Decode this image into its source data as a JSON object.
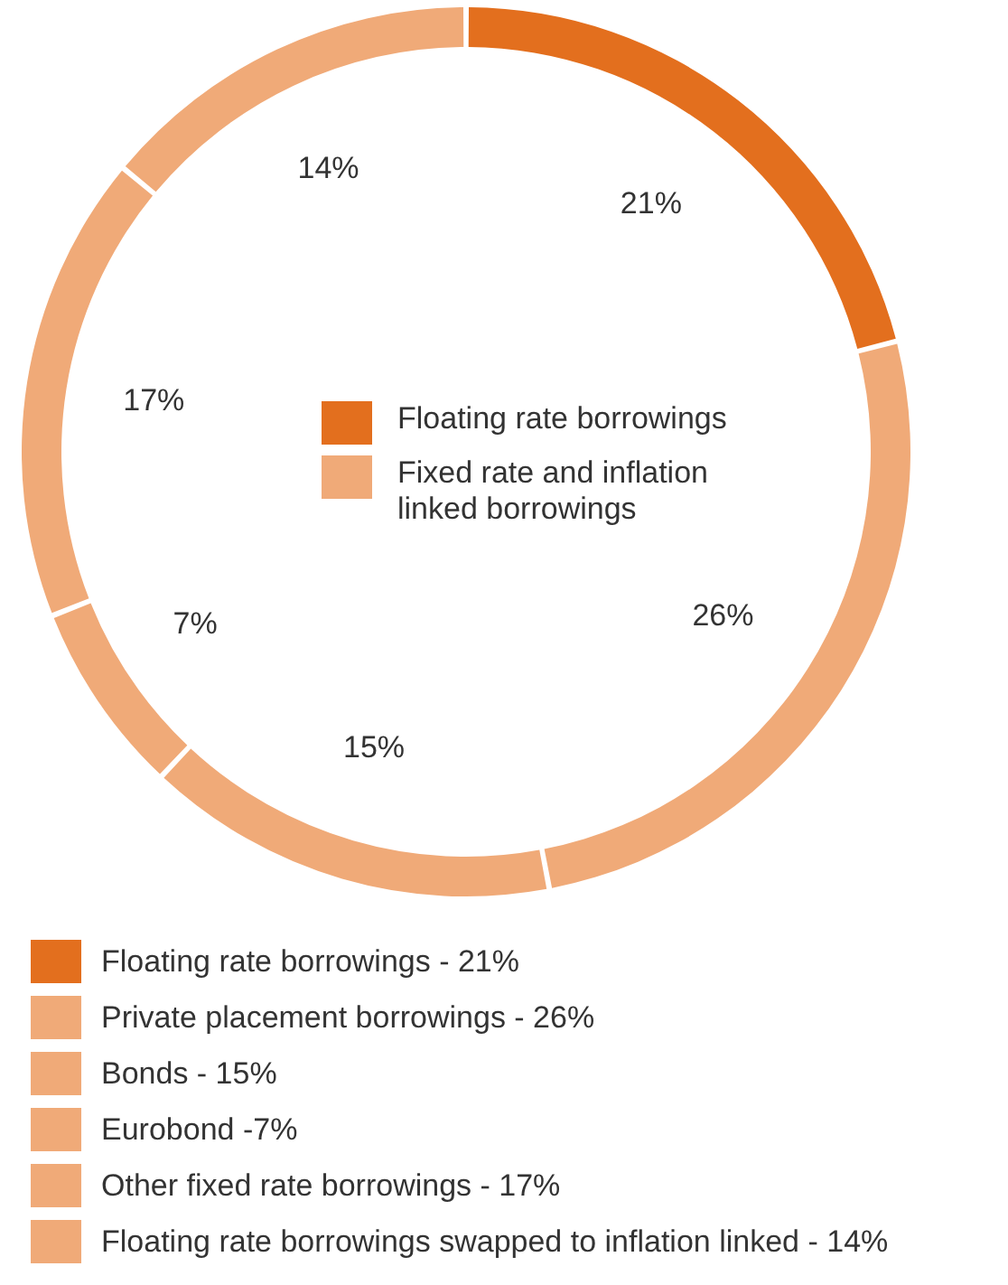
{
  "chart_data": {
    "type": "donut",
    "categories": [
      "Floating rate borrowings - 21%",
      "Private placement borrowings - 26%",
      "Bonds - 15%",
      "Eurobond -7%",
      "Other fixed rate borrowings - 17%",
      "Floating rate borrowings swapped to inflation linked - 14%"
    ],
    "values": [
      21,
      26,
      15,
      7,
      17,
      14
    ],
    "value_labels": [
      "21%",
      "26%",
      "15%",
      "7%",
      "17%",
      "14%"
    ],
    "colors": [
      "#e36f1e",
      "#f0aa78",
      "#f0aa78",
      "#f0aa78",
      "#f0aa78",
      "#f0aa78"
    ],
    "annotations": [
      "Floating rate borrowings",
      "Fixed rate and inflation linked borrowings"
    ],
    "legend": "bottom"
  }
}
